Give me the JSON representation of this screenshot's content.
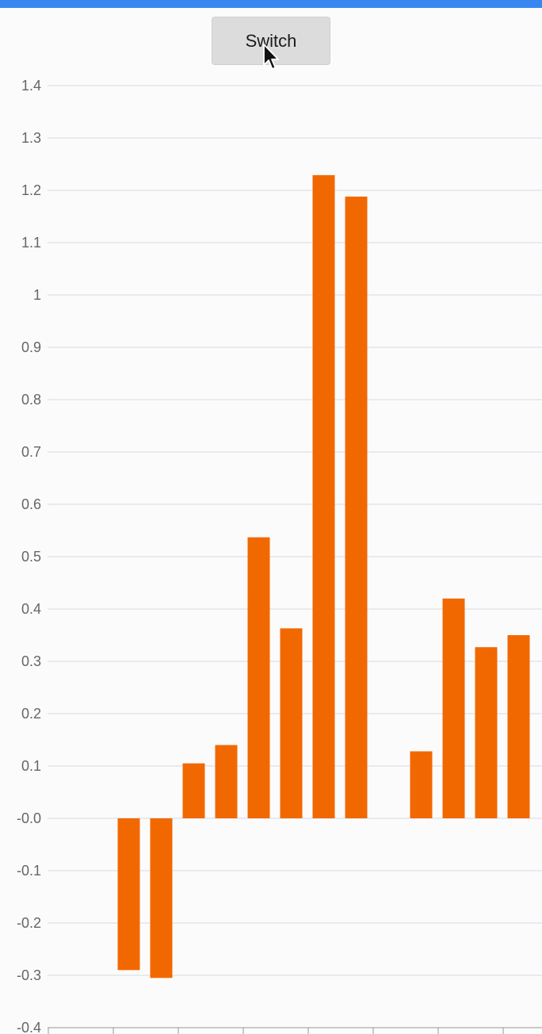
{
  "toolbar": {
    "switch_label": "Switch"
  },
  "colors": {
    "bar": "#f26800",
    "grid": "#d7d9e6",
    "axis": "#999999",
    "top_bar": "#3a86f0"
  },
  "chart_data": {
    "type": "bar",
    "title": "",
    "xlabel": "",
    "ylabel": "",
    "ylim": [
      -0.4,
      1.4
    ],
    "grid": true,
    "y_ticks": [
      "1.4",
      "1.3",
      "1.2",
      "1.1",
      "1",
      "0.9",
      "0.8",
      "0.7",
      "0.6",
      "0.5",
      "0.4",
      "0.3",
      "0.2",
      "0.1",
      "-0.0",
      "-0.1",
      "-0.2",
      "-0.3",
      "-0.4"
    ],
    "values": [
      0,
      0,
      -0.29,
      -0.305,
      0.105,
      0.14,
      0.537,
      0.363,
      1.229,
      1.188,
      0,
      0.128,
      0.42,
      0.327,
      0.35
    ],
    "category_ticks": 8
  }
}
